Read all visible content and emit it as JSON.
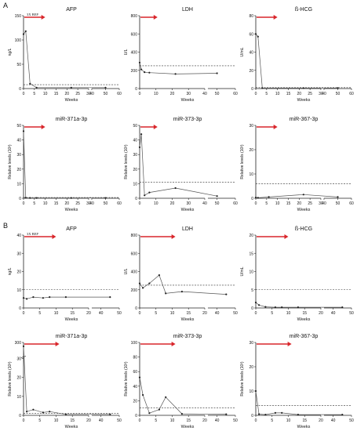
{
  "figure": {
    "section_a_letter": "A",
    "section_b_letter": "B"
  },
  "chart_data": [
    {
      "type": "line",
      "section": "A",
      "title": "AFP",
      "ylabel": "ng/L",
      "xlabel": "Weeks",
      "ylim": [
        0,
        150
      ],
      "yticks": [
        0,
        50,
        100,
        150
      ],
      "xticks_left": [
        0,
        5,
        10,
        15,
        20,
        25,
        30
      ],
      "xticks_right": [
        40,
        50,
        60
      ],
      "xmax_left": 30,
      "xmin_right": 40,
      "xmax_right": 60,
      "threshold": 8,
      "arrow_end": 10,
      "arrow_label": "3X BEP",
      "x": [
        0,
        1,
        3,
        6,
        22,
        50
      ],
      "y": [
        112,
        118,
        10,
        2,
        2,
        2
      ]
    },
    {
      "type": "line",
      "section": "A",
      "title": "LDH",
      "ylabel": "U/L",
      "xlabel": "Weeks",
      "ylim": [
        0,
        800
      ],
      "yticks": [
        0,
        200,
        400,
        600,
        800
      ],
      "xticks_left": [
        0,
        10,
        20,
        30,
        40
      ],
      "xticks_right": [
        50,
        60
      ],
      "xmax_left": 40,
      "xmin_right": 45,
      "xmax_right": 60,
      "threshold": 250,
      "arrow_end": 11,
      "arrow_label": "",
      "x": [
        0,
        1,
        3,
        6,
        22,
        50
      ],
      "y": [
        285,
        210,
        180,
        175,
        160,
        168
      ]
    },
    {
      "type": "line",
      "section": "A",
      "title": "ß-HCG",
      "ylabel": "U/mL",
      "xlabel": "Weeks",
      "ylim": [
        0,
        80
      ],
      "yticks": [
        0,
        20,
        40,
        60,
        80
      ],
      "xticks_left": [
        0,
        5,
        10,
        15,
        20,
        25,
        30
      ],
      "xticks_right": [
        40,
        50,
        60
      ],
      "xmax_left": 30,
      "xmin_right": 40,
      "xmax_right": 60,
      "threshold": 1,
      "arrow_end": 10,
      "arrow_label": "",
      "x": [
        0,
        1,
        3,
        22,
        50
      ],
      "y": [
        60,
        57,
        0.5,
        0.5,
        0.5
      ]
    },
    {
      "type": "line",
      "section": "A",
      "title": "miR-371a-3p",
      "ylabel": "Relative levels (10³)",
      "xlabel": "Weeks",
      "ylim": [
        0,
        50
      ],
      "yticks": [
        0,
        10,
        20,
        30,
        40,
        50
      ],
      "xticks_left": [
        0,
        5,
        10,
        15,
        20,
        25,
        30
      ],
      "xticks_right": [
        40,
        50,
        60
      ],
      "xmax_left": 30,
      "xmin_right": 40,
      "xmax_right": 60,
      "threshold": 0.5,
      "arrow_end": 10,
      "arrow_label": "",
      "x": [
        0,
        1,
        3,
        6,
        22,
        50
      ],
      "y": [
        46,
        0.3,
        0.2,
        0.2,
        0.2,
        0.2
      ]
    },
    {
      "type": "line",
      "section": "A",
      "title": "miR-373-3p",
      "ylabel": "Relative levels (10³)",
      "xlabel": "Weeks",
      "ylim": [
        0,
        50
      ],
      "yticks": [
        0,
        10,
        20,
        30,
        40,
        50
      ],
      "xticks_left": [
        0,
        10,
        20,
        30,
        40
      ],
      "xticks_right": [
        50,
        60
      ],
      "xmax_left": 40,
      "xmin_right": 45,
      "xmax_right": 60,
      "threshold": 11,
      "arrow_end": 11,
      "arrow_label": "",
      "x": [
        0,
        1,
        3,
        6,
        22,
        50
      ],
      "y": [
        35,
        44,
        2,
        4,
        7,
        1.5
      ]
    },
    {
      "type": "line",
      "section": "A",
      "title": "miR-367-3p",
      "ylabel": "Relative levels (10³)",
      "xlabel": "Weeks",
      "ylim": [
        0,
        30
      ],
      "yticks": [
        0,
        10,
        20,
        30
      ],
      "xticks_left": [
        0,
        5,
        10,
        15,
        20,
        25,
        30
      ],
      "xticks_right": [
        40,
        50,
        60
      ],
      "xmax_left": 30,
      "xmin_right": 40,
      "xmax_right": 60,
      "threshold": 6,
      "arrow_end": 10,
      "arrow_label": "",
      "x": [
        0,
        1,
        6,
        22,
        50
      ],
      "y": [
        0.3,
        0.2,
        0.5,
        1.5,
        0.5
      ]
    },
    {
      "type": "line",
      "section": "B",
      "title": "AFP",
      "ylabel": "ng/L",
      "xlabel": "Weeks",
      "ylim": [
        0,
        40
      ],
      "yticks": [
        0,
        10,
        20,
        30,
        40
      ],
      "xticks_left": [
        0,
        5,
        10,
        15,
        20
      ],
      "xticks_right": [
        40,
        50
      ],
      "xmax_left": 20,
      "xmin_right": 35,
      "xmax_right": 50,
      "threshold": 10,
      "arrow_end": 10,
      "arrow_label": "3X BEP",
      "x": [
        0,
        1,
        3,
        6,
        8,
        13,
        45
      ],
      "y": [
        5.5,
        5,
        6,
        5.5,
        6,
        6,
        6
      ]
    },
    {
      "type": "line",
      "section": "B",
      "title": "LDH",
      "ylabel": "U/L",
      "xlabel": "Weeks",
      "ylim": [
        0,
        800
      ],
      "yticks": [
        0,
        200,
        400,
        600,
        800
      ],
      "xticks_left": [
        0,
        5,
        10,
        15,
        20
      ],
      "xticks_right": [
        40,
        50
      ],
      "xmax_left": 20,
      "xmin_right": 35,
      "xmax_right": 50,
      "threshold": 250,
      "arrow_end": 11,
      "arrow_label": "",
      "x": [
        0,
        1,
        3,
        6,
        8,
        13,
        45
      ],
      "y": [
        270,
        220,
        270,
        360,
        160,
        180,
        150
      ]
    },
    {
      "type": "line",
      "section": "B",
      "title": "ß-HCG",
      "ylabel": "U/mL",
      "xlabel": "Weeks",
      "ylim": [
        0,
        20
      ],
      "yticks": [
        0,
        5,
        10,
        15,
        20
      ],
      "xticks_left": [
        0,
        5,
        10,
        15,
        20
      ],
      "xticks_right": [
        40,
        50
      ],
      "xmax_left": 20,
      "xmin_right": 35,
      "xmax_right": 50,
      "threshold": 5,
      "arrow_end": 10,
      "arrow_label": "",
      "x": [
        0,
        1,
        3,
        6,
        8,
        13,
        45
      ],
      "y": [
        1.5,
        0.8,
        0.3,
        0.2,
        0.2,
        0.2,
        0.2
      ]
    },
    {
      "type": "line",
      "section": "B",
      "title": "miR-371a-3p",
      "ylabel": "Relative levels (10³)",
      "xlabel": "Weeks",
      "ylim": [
        0,
        300
      ],
      "yticks": [
        0,
        10,
        20,
        30,
        300
      ],
      "xticks_left": [
        0,
        5,
        10,
        15,
        20
      ],
      "xticks_right": [
        40,
        50
      ],
      "xmax_left": 20,
      "xmin_right": 35,
      "xmax_right": 50,
      "threshold": 1,
      "arrow_end": 11,
      "arrow_label": "",
      "x": [
        0,
        1,
        3,
        6,
        8,
        13,
        45
      ],
      "y": [
        220,
        2,
        3,
        1.5,
        2,
        0.5,
        0.5
      ]
    },
    {
      "type": "line",
      "section": "B",
      "title": "miR-373-3p",
      "ylabel": "Relative levels (10³)",
      "xlabel": "Weeks",
      "ylim": [
        0,
        100
      ],
      "yticks": [
        0,
        20,
        40,
        60,
        80,
        100
      ],
      "xticks_left": [
        0,
        5,
        10,
        15,
        20
      ],
      "xticks_right": [
        40,
        50
      ],
      "xmax_left": 20,
      "xmin_right": 35,
      "xmax_right": 50,
      "threshold": 10,
      "arrow_end": 11,
      "arrow_label": "",
      "x": [
        0,
        1,
        3,
        6,
        8,
        13,
        45
      ],
      "y": [
        52,
        28,
        3,
        8,
        25,
        2,
        1.5
      ]
    },
    {
      "type": "line",
      "section": "B",
      "title": "miR-367-3p",
      "ylabel": "Relative levels (10³)",
      "xlabel": "Weeks",
      "ylim": [
        0,
        30
      ],
      "yticks": [
        0,
        10,
        20,
        30
      ],
      "xticks_left": [
        0,
        5,
        10,
        15,
        20
      ],
      "xticks_right": [
        40,
        50
      ],
      "xmax_left": 20,
      "xmin_right": 35,
      "xmax_right": 50,
      "threshold": 4,
      "arrow_end": 11,
      "arrow_label": "",
      "x": [
        0,
        1,
        3,
        6,
        8,
        13,
        45
      ],
      "y": [
        10,
        0.5,
        0.3,
        1,
        1,
        0.3,
        0.3
      ]
    }
  ],
  "colors": {
    "arrow": "#d9262b",
    "line": "#555555",
    "axis": "#222222",
    "threshold": "#333333",
    "text": "#111111"
  }
}
